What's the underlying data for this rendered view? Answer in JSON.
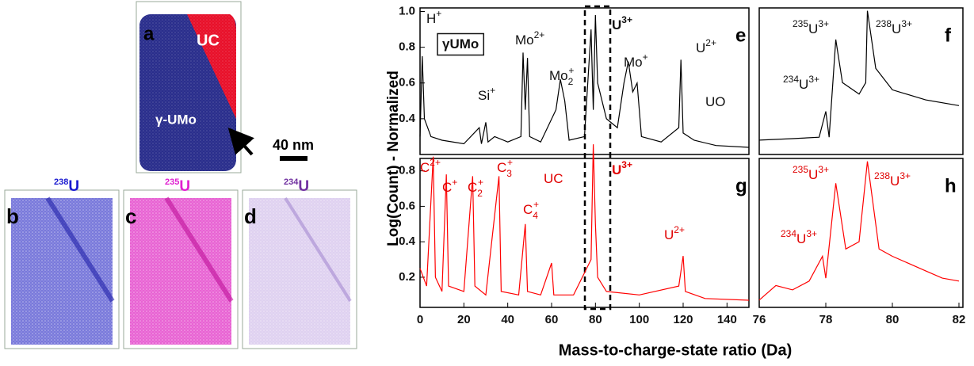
{
  "reconstructions": {
    "a": {
      "label": "a",
      "uc": "UC",
      "umo": "γ-UMo",
      "scale": "40 nm"
    },
    "b": {
      "label": "b",
      "mass": "238",
      "symbol": "U"
    },
    "c": {
      "label": "c",
      "mass": "235",
      "symbol": "U"
    },
    "d": {
      "label": "d",
      "mass": "234",
      "symbol": "U"
    }
  },
  "y_axis_label": "Log(Count) - Normalized",
  "x_axis_label": "Mass-to-charge-state ratio (Da)",
  "chart_data": [
    {
      "type": "line",
      "panel": "e",
      "color": "#000000",
      "xlim": [
        0,
        150
      ],
      "ylim": [
        0.2,
        1.02
      ],
      "yticks": [
        0.4,
        0.6,
        0.8,
        {
          "value": 1,
          "label": "1.0"
        }
      ],
      "x": [
        0,
        1,
        2,
        5,
        10,
        20,
        27,
        28,
        30,
        31,
        34,
        40,
        46,
        47,
        48,
        49,
        50,
        55,
        62,
        64,
        66,
        68,
        75,
        78,
        79,
        80,
        81,
        85,
        90,
        93,
        95,
        97,
        99,
        101,
        110,
        118,
        119,
        120,
        125,
        135,
        150
      ],
      "values": [
        0.3,
        0.75,
        0.4,
        0.3,
        0.28,
        0.26,
        0.35,
        0.26,
        0.38,
        0.27,
        0.3,
        0.27,
        0.3,
        0.77,
        0.45,
        0.74,
        0.3,
        0.27,
        0.45,
        0.62,
        0.5,
        0.28,
        0.3,
        0.9,
        0.45,
        0.98,
        0.6,
        0.4,
        0.35,
        0.6,
        0.72,
        0.55,
        0.6,
        0.3,
        0.27,
        0.35,
        0.73,
        0.32,
        0.28,
        0.25,
        0.24
      ],
      "annotations": [
        {
          "base": "H",
          "sup": "+"
        },
        {
          "base": "γUMo"
        },
        {
          "base": "Mo",
          "sup": "2+"
        },
        {
          "base": "Si",
          "sup": "+"
        },
        {
          "base": "Mo",
          "sub": "2",
          "sup": "+"
        },
        {
          "base": "U",
          "sup": "3+"
        },
        {
          "base": "Mo",
          "sup": "+"
        },
        {
          "base": "U",
          "sup": "2+"
        },
        {
          "base": "UO"
        }
      ]
    },
    {
      "type": "line",
      "panel": "g",
      "color": "#ff0000",
      "xlim": [
        0,
        150
      ],
      "ylim": [
        0.03,
        0.87
      ],
      "yticks": [
        0.2,
        0.4,
        0.6,
        0.8
      ],
      "xticks": [
        0,
        20,
        40,
        60,
        80,
        100,
        120,
        140
      ],
      "x": [
        0,
        3,
        6,
        7,
        10,
        12,
        13,
        20,
        24,
        25,
        30,
        36,
        37,
        45,
        48,
        49,
        55,
        60,
        61,
        70,
        78,
        79,
        80,
        81,
        85,
        100,
        118,
        120,
        121,
        130,
        150
      ],
      "values": [
        0.25,
        0.15,
        0.88,
        0.2,
        0.12,
        0.78,
        0.15,
        0.12,
        0.77,
        0.15,
        0.1,
        0.77,
        0.12,
        0.1,
        0.5,
        0.12,
        0.1,
        0.28,
        0.1,
        0.1,
        0.3,
        0.95,
        0.5,
        0.2,
        0.12,
        0.1,
        0.15,
        0.32,
        0.12,
        0.08,
        0.07
      ],
      "annotations": [
        {
          "base": "C",
          "sup": "2+"
        },
        {
          "base": "C",
          "sup": "+"
        },
        {
          "base": "C",
          "sub": "2",
          "sup": "+"
        },
        {
          "base": "C",
          "sub": "3",
          "sup": "+"
        },
        {
          "base": "UC"
        },
        {
          "base": "U",
          "sup": "3+"
        },
        {
          "base": "C",
          "sub": "4",
          "sup": "+"
        },
        {
          "base": "U",
          "sup": "2+"
        }
      ]
    },
    {
      "type": "line",
      "panel": "f",
      "color": "#000000",
      "xlim": [
        76,
        82
      ],
      "ylim": [
        0,
        1.02
      ],
      "x": [
        76,
        77,
        77.8,
        78,
        78.1,
        78.3,
        78.5,
        79,
        79.2,
        79.25,
        79.5,
        80,
        81,
        82
      ],
      "values": [
        0.1,
        0.11,
        0.12,
        0.3,
        0.12,
        0.8,
        0.5,
        0.42,
        0.5,
        1.0,
        0.6,
        0.45,
        0.38,
        0.34
      ],
      "annotations": [
        {
          "pre": "235",
          "base": "U",
          "sup": "3+"
        },
        {
          "pre": "238",
          "base": "U",
          "sup": "3+"
        },
        {
          "pre": "234",
          "base": "U",
          "sup": "3+"
        }
      ]
    },
    {
      "type": "line",
      "panel": "h",
      "color": "#ff0000",
      "xlim": [
        76,
        82
      ],
      "ylim": [
        0,
        1.02
      ],
      "xticks": [
        76,
        78,
        80,
        82
      ],
      "x": [
        76,
        76.5,
        77,
        77.5,
        77.9,
        78,
        78.3,
        78.6,
        79,
        79.25,
        79.6,
        80,
        80.5,
        81,
        81.5,
        82
      ],
      "values": [
        0.05,
        0.15,
        0.12,
        0.18,
        0.35,
        0.2,
        0.85,
        0.4,
        0.45,
        1.0,
        0.4,
        0.35,
        0.3,
        0.25,
        0.2,
        0.18
      ],
      "annotations": [
        {
          "pre": "235",
          "base": "U",
          "sup": "3+"
        },
        {
          "pre": "238",
          "base": "U",
          "sup": "3+"
        },
        {
          "pre": "234",
          "base": "U",
          "sup": "3+"
        }
      ]
    }
  ]
}
